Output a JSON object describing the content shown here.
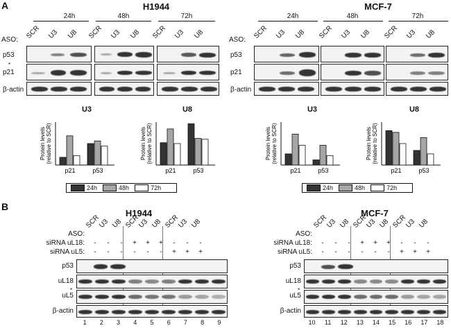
{
  "panel_a": {
    "letter": "A",
    "aso_label": "ASO:",
    "lane_labels": [
      "SCR",
      "U3",
      "U8"
    ],
    "timepoints": [
      "24h",
      "48h",
      "72h"
    ],
    "row_labels": [
      "p53",
      "p21",
      "β-actin"
    ],
    "asterisk": "*",
    "cells": [
      {
        "title": "H1944",
        "charts": [
          {
            "title": "U3",
            "ylabel": "Protein levels (relative to SCR)",
            "groups": [
              "p21",
              "p53"
            ],
            "values": {
              "24h": [
                4.5,
                12.5
              ],
              "48h": [
                17,
                14
              ],
              "72h": [
                5.5,
                11
              ]
            },
            "ymax": 25
          },
          {
            "title": "U8",
            "ylabel": "Protein levels (relative to SCR)",
            "groups": [
              "p21",
              "p53"
            ],
            "values": {
              "24h": [
                13,
                24
              ],
              "48h": [
                21,
                15.5
              ],
              "72h": [
                12.5,
                15
              ]
            },
            "ymax": 25
          }
        ]
      },
      {
        "title": "MCF-7",
        "charts": [
          {
            "title": "U3",
            "ylabel": "Protein levels (relative to SCR)",
            "groups": [
              "p21",
              "p53"
            ],
            "values": {
              "24h": [
                6.5,
                3
              ],
              "48h": [
                18,
                11.5
              ],
              "72h": [
                11.5,
                5.5
              ]
            },
            "ymax": 25
          },
          {
            "title": "U8",
            "ylabel": "Protein levels (relative to SCR)",
            "groups": [
              "p21",
              "p53"
            ],
            "values": {
              "24h": [
                20,
                8.5
              ],
              "48h": [
                19,
                16
              ],
              "72h": [
                12.5,
                6.5
              ]
            },
            "ymax": 25
          }
        ]
      }
    ],
    "legend": [
      {
        "name": "24h",
        "color": "#333333"
      },
      {
        "name": "48h",
        "color": "#a6a6a6"
      },
      {
        "name": "72h",
        "color": "#ffffff"
      }
    ]
  },
  "panel_b": {
    "letter": "B",
    "cells": [
      {
        "title": "H1944",
        "lane_numbers": [
          "1",
          "2",
          "3",
          "4",
          "5",
          "6",
          "7",
          "8",
          "9"
        ]
      },
      {
        "title": "MCF-7",
        "lane_numbers": [
          "10",
          "11",
          "12",
          "13",
          "14",
          "15",
          "16",
          "17",
          "18"
        ]
      }
    ],
    "cond_labels": [
      "ASO:",
      "siRNA uL18:",
      "siRNA uL5:"
    ],
    "aso_row": [
      "SCR",
      "U3",
      "U8",
      "SCR",
      "U3",
      "U8",
      "SCR",
      "U3",
      "U8"
    ],
    "uL18_row": [
      "-",
      "-",
      "-",
      "+",
      "+",
      "+",
      "-",
      "-",
      "-"
    ],
    "uL5_row": [
      "-",
      "-",
      "-",
      "-",
      "-",
      "-",
      "+",
      "+",
      "+"
    ],
    "row_labels": [
      "p53",
      "uL18",
      "uL5",
      "β-actin"
    ],
    "asterisk": "*"
  }
}
